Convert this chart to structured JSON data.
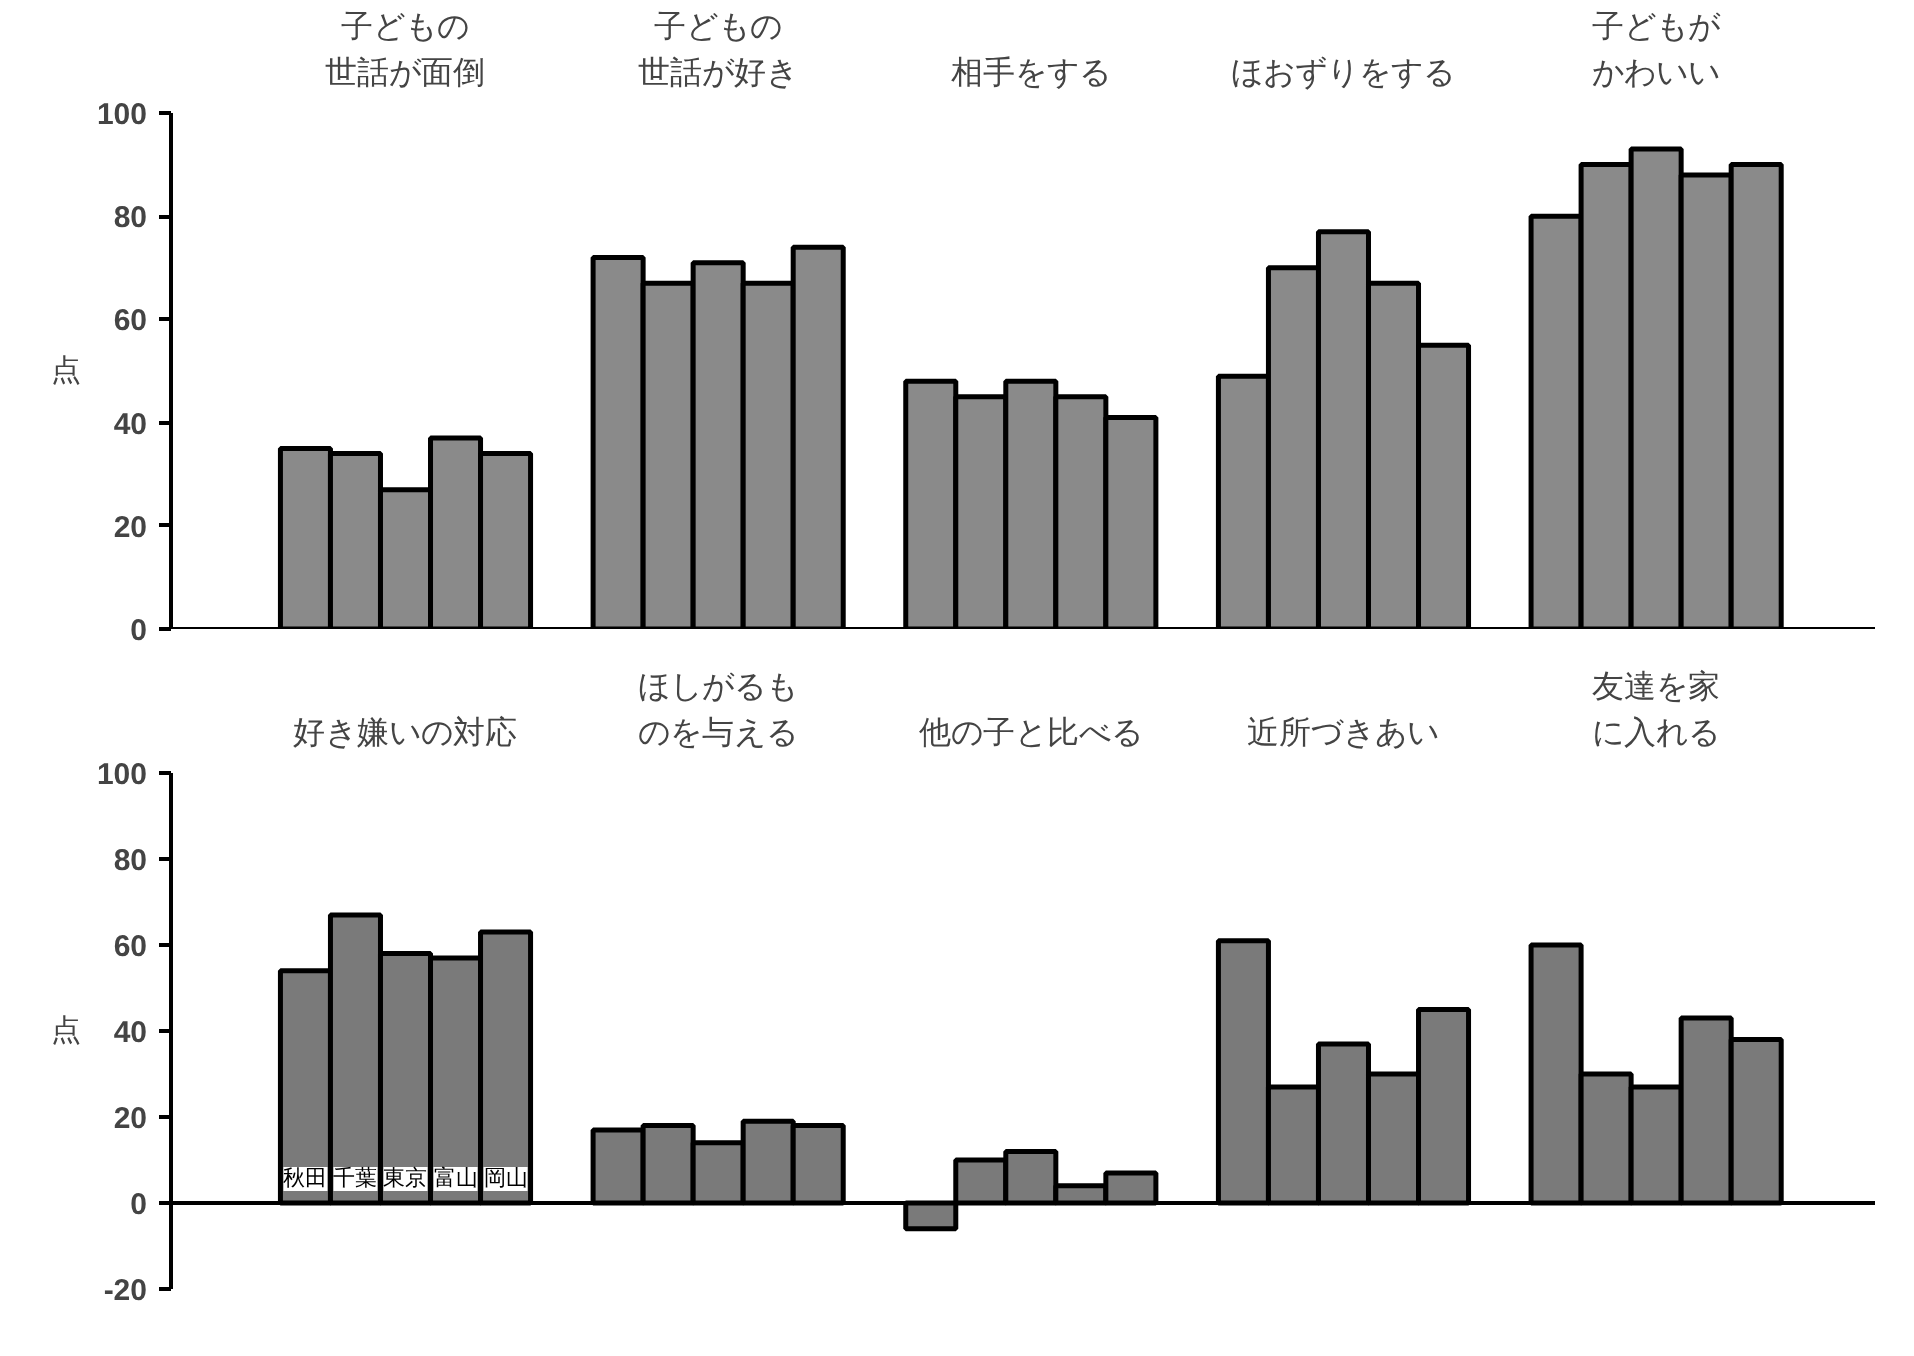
{
  "chart_data": [
    {
      "type": "bar",
      "ylabel": "点",
      "categories": [
        "子どもの世話が面倒",
        "子どもの世話が好き",
        "相手をする",
        "ほおずりをする",
        "子どもがかわいい"
      ],
      "series": [
        {
          "color": "#8a8a8a",
          "values": [
            35,
            72,
            48,
            49,
            80
          ]
        },
        {
          "color": "#8a8a8a",
          "values": [
            34,
            67,
            45,
            70,
            90
          ]
        },
        {
          "color": "#8a8a8a",
          "values": [
            27,
            71,
            48,
            77,
            93
          ]
        },
        {
          "color": "#8a8a8a",
          "values": [
            37,
            67,
            45,
            67,
            88
          ]
        },
        {
          "color": "#8a8a8a",
          "values": [
            34,
            74,
            41,
            55,
            90
          ]
        }
      ],
      "ylim": [
        0,
        100
      ],
      "yticks": [
        0,
        20,
        40,
        60,
        80,
        100
      ],
      "grid": false,
      "ref_lines": [
        {
          "axis": "y",
          "value": 0
        }
      ]
    },
    {
      "type": "bar",
      "ylabel": "点",
      "categories": [
        "好き嫌いの対応",
        "ほしがるものを与える",
        "他の子と比べる",
        "近所づきあい",
        "友達を家に入れる"
      ],
      "series": [
        {
          "name": "秋田",
          "color": "#7a7a7a",
          "values": [
            54,
            17,
            -6,
            61,
            60
          ]
        },
        {
          "name": "千葉",
          "color": "#7a7a7a",
          "values": [
            67,
            18,
            10,
            27,
            30
          ]
        },
        {
          "name": "東京",
          "color": "#7a7a7a",
          "values": [
            58,
            14,
            12,
            37,
            27
          ]
        },
        {
          "name": "富山",
          "color": "#7a7a7a",
          "values": [
            57,
            19,
            4,
            30,
            43
          ]
        },
        {
          "name": "岡山",
          "color": "#7a7a7a",
          "values": [
            63,
            18,
            7,
            45,
            38
          ]
        }
      ],
      "ylim": [
        -20,
        100
      ],
      "yticks": [
        -20,
        0,
        20,
        40,
        60,
        80,
        100
      ],
      "grid": false,
      "ref_lines": [
        {
          "axis": "y",
          "value": 0
        }
      ]
    }
  ]
}
